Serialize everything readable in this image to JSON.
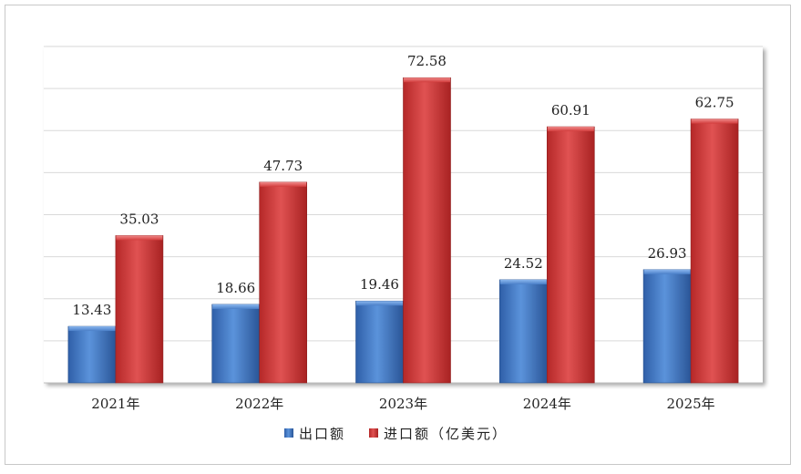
{
  "chart_data": {
    "type": "bar",
    "categories": [
      "2021年",
      "2022年",
      "2023年",
      "2024年",
      "2025年"
    ],
    "series": [
      {
        "name": "出口额",
        "values": [
          13.43,
          18.66,
          19.46,
          24.52,
          26.93
        ],
        "color": "#4a7fc8"
      },
      {
        "name": "进口额（亿美元）",
        "values": [
          35.03,
          47.73,
          72.58,
          60.91,
          62.75
        ],
        "color": "#d23c3c"
      }
    ],
    "value_labels": [
      [
        "13.43",
        "18.66",
        "19.46",
        "24.52",
        "26.93"
      ],
      [
        "35.03",
        "47.73",
        "72.58",
        "60.91",
        "62.75"
      ]
    ],
    "ylim": [
      0,
      80
    ],
    "gridlines": [
      10,
      20,
      30,
      40,
      50,
      60,
      70,
      80
    ],
    "grid": true,
    "legend_position": "bottom"
  }
}
